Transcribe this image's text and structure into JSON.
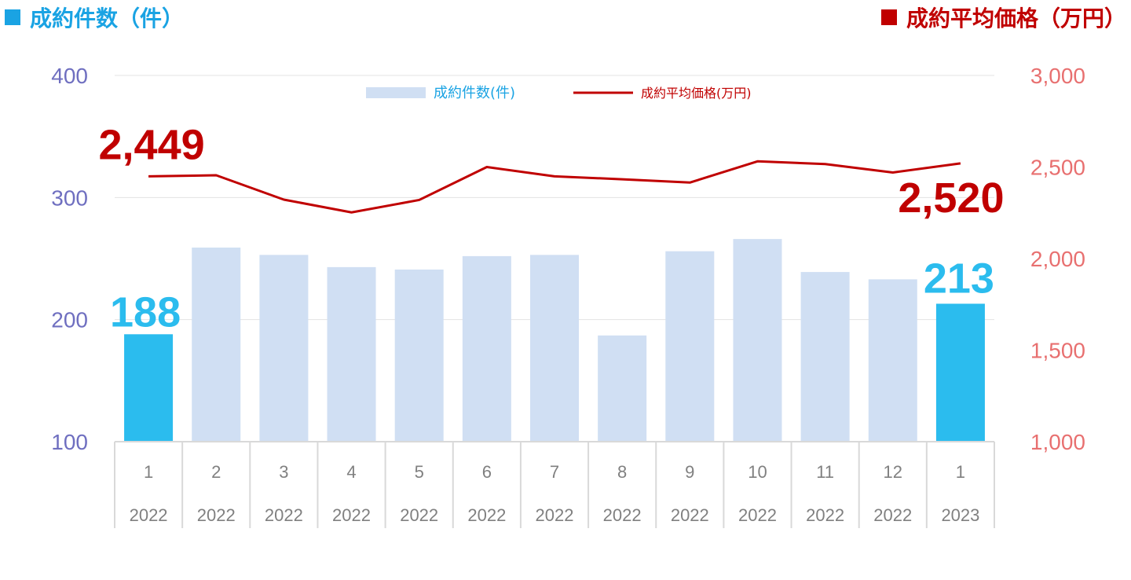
{
  "header": {
    "left_title": "成約件数（件）",
    "right_title": "成約平均価格（万円）"
  },
  "colors": {
    "left_axis": "#6f6fc0",
    "right_axis": "#e87070",
    "bar_default": "#d0dff3",
    "bar_highlight": "#2bbcee",
    "line": "#c00000",
    "title_left": "#1aa3e3",
    "title_right": "#c00000",
    "grid": "#e3e3e3",
    "tick_text": "#808080"
  },
  "chart_data": {
    "type": "bar",
    "categories": [
      "1",
      "2",
      "3",
      "4",
      "5",
      "6",
      "7",
      "8",
      "9",
      "10",
      "11",
      "12",
      "1"
    ],
    "years": [
      "2022",
      "2022",
      "2022",
      "2022",
      "2022",
      "2022",
      "2022",
      "2022",
      "2022",
      "2022",
      "2022",
      "2022",
      "2023"
    ],
    "series": [
      {
        "name": "成約件数(件)",
        "type": "bar",
        "axis": "left",
        "values": [
          188,
          259,
          253,
          243,
          241,
          252,
          253,
          187,
          256,
          266,
          239,
          233,
          213
        ]
      },
      {
        "name": "成約平均価格(万円)",
        "type": "line",
        "axis": "right",
        "values": [
          2449,
          2455,
          2322,
          2252,
          2320,
          2500,
          2449,
          2433,
          2415,
          2531,
          2516,
          2470,
          2520
        ]
      }
    ],
    "highlight_indices": [
      0,
      12
    ],
    "left_axis": {
      "ylim": [
        100,
        400
      ],
      "ticks": [
        "100",
        "200",
        "300",
        "400"
      ]
    },
    "right_axis": {
      "ylim": [
        1000,
        3000
      ],
      "ticks": [
        "1,000",
        "1,500",
        "2,000",
        "2,500",
        "3,000"
      ]
    },
    "annotations": {
      "bar_labels": [
        "188",
        "213"
      ],
      "line_labels": [
        "2,449",
        "2,520"
      ]
    },
    "legend": {
      "position": "top-center",
      "items": [
        "成約件数(件)",
        "成約平均価格(万円)"
      ]
    },
    "grid": true
  }
}
